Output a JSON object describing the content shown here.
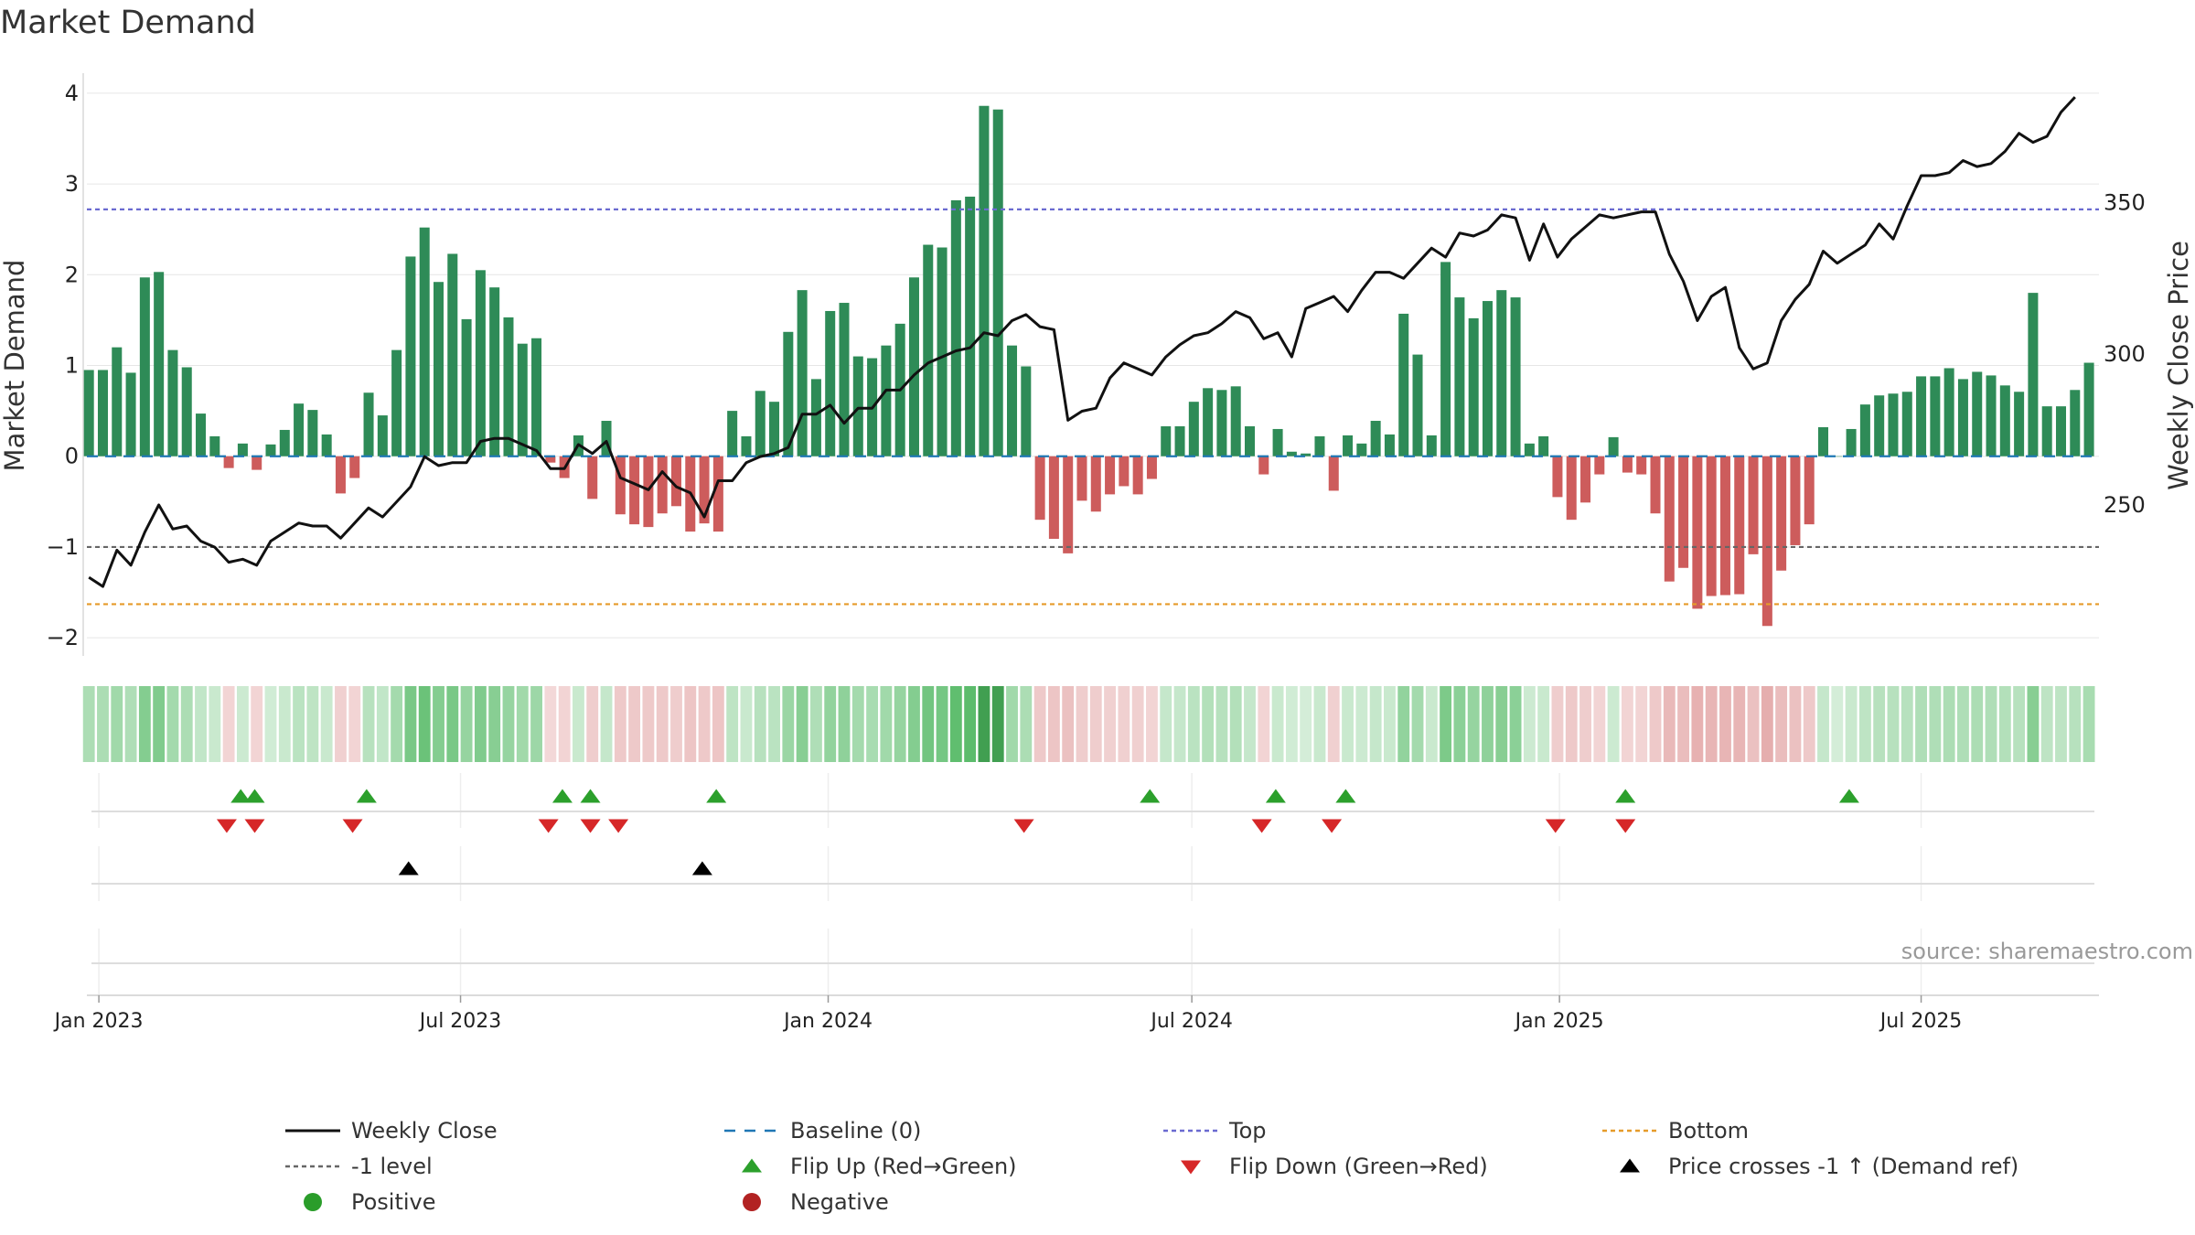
{
  "title": "Market Demand",
  "source": "source: sharemaestro.com",
  "colors": {
    "positive": "#2e8b57",
    "negative": "#cd5c5c",
    "price": "#111111",
    "baseline": "#1f77b4",
    "top": "#6a6ad0",
    "bottom": "#e69b2a",
    "minus1": "#666666",
    "flip_up": "#2ca02c",
    "flip_down": "#d62728",
    "cross": "#000000",
    "legend_positive": "#2a9d2a",
    "legend_negative": "#b22222"
  },
  "chart_data": {
    "type": "bar+line",
    "title": "Market Demand",
    "ylabel": "Market Demand",
    "y2label": "Weekly Close Price",
    "ylim": [
      -2.2,
      4.2
    ],
    "y2lim": [
      200,
      392.3
    ],
    "yticks": [
      -2,
      -1,
      0,
      1,
      2,
      3,
      4
    ],
    "y2ticks": [
      250,
      300,
      350
    ],
    "ytick_labels": [
      "−2",
      "−1",
      "0",
      "1",
      "2",
      "3",
      "4"
    ],
    "y2tick_labels": [
      "250",
      "300",
      "350"
    ],
    "top_level": 2.72,
    "bottom_level": -1.63,
    "minus1_level": -1,
    "x_start": "2022-12-26",
    "x_end": "2025-09-28",
    "xticks": [
      {
        "date": "2023-01-01",
        "label": "Jan 2023"
      },
      {
        "date": "2023-07-01",
        "label": "Jul 2023"
      },
      {
        "date": "2024-01-01",
        "label": "Jan 2024"
      },
      {
        "date": "2024-07-01",
        "label": "Jul 2024"
      },
      {
        "date": "2025-01-01",
        "label": "Jan 2025"
      },
      {
        "date": "2025-07-01",
        "label": "Jul 2025"
      }
    ],
    "start_date": "2022-12-27",
    "demand": [
      0.95,
      0.95,
      1.2,
      0.92,
      1.97,
      2.03,
      1.17,
      0.98,
      0.47,
      0.22,
      -0.13,
      0.14,
      -0.15,
      0.13,
      0.29,
      0.58,
      0.51,
      0.24,
      -0.41,
      -0.24,
      0.7,
      0.45,
      1.17,
      2.2,
      2.52,
      1.92,
      2.23,
      1.51,
      2.05,
      1.86,
      1.53,
      1.24,
      1.3,
      -0.07,
      -0.24,
      0.23,
      -0.47,
      0.39,
      -0.64,
      -0.75,
      -0.78,
      -0.63,
      -0.55,
      -0.83,
      -0.74,
      -0.83,
      0.5,
      0.22,
      0.72,
      0.6,
      1.37,
      1.83,
      0.85,
      1.6,
      1.69,
      1.1,
      1.08,
      1.22,
      1.46,
      1.97,
      2.33,
      2.3,
      2.82,
      2.86,
      3.86,
      3.82,
      1.22,
      0.99,
      -0.7,
      -0.91,
      -1.07,
      -0.49,
      -0.61,
      -0.42,
      -0.33,
      -0.42,
      -0.25,
      0.33,
      0.33,
      0.6,
      0.75,
      0.73,
      0.77,
      0.33,
      -0.2,
      0.3,
      0.05,
      0.03,
      0.22,
      -0.38,
      0.23,
      0.14,
      0.39,
      0.24,
      1.57,
      1.12,
      0.23,
      2.14,
      1.75,
      1.52,
      1.71,
      1.83,
      1.75,
      0.14,
      0.22,
      -0.45,
      -0.7,
      -0.51,
      -0.2,
      0.21,
      -0.18,
      -0.2,
      -0.63,
      -1.38,
      -1.23,
      -1.68,
      -1.54,
      -1.53,
      -1.52,
      -1.08,
      -1.87,
      -1.26,
      -0.98,
      -0.75,
      0.32,
      0.0,
      0.3,
      0.57,
      0.67,
      0.69,
      0.71,
      0.88,
      0.88,
      0.97,
      0.85,
      0.93,
      0.89,
      0.78,
      0.71,
      1.8,
      0.55,
      0.55,
      0.73,
      1.03
    ],
    "price": [
      226,
      223,
      235,
      230,
      241,
      250,
      242,
      243,
      238,
      236,
      231,
      232,
      230,
      238,
      241,
      244,
      243,
      243,
      239,
      244,
      249,
      246,
      251,
      256,
      266,
      263,
      264,
      264,
      271,
      272,
      272,
      270,
      268,
      262,
      262,
      270,
      267,
      271,
      259,
      257,
      255,
      261,
      256,
      254,
      246,
      258,
      258,
      264,
      266,
      267,
      269,
      280,
      280,
      283,
      277,
      282,
      282,
      288,
      288,
      293,
      297,
      299,
      301,
      302,
      307,
      306,
      311,
      313,
      309,
      308,
      278,
      281,
      282,
      292,
      297,
      295,
      293,
      299,
      303,
      306,
      307,
      310,
      314,
      312,
      305,
      307,
      299,
      315,
      317,
      319,
      314,
      321,
      327,
      327,
      325,
      330,
      335,
      332,
      340,
      339,
      341,
      346,
      345,
      331,
      343,
      332,
      338,
      342,
      346,
      345,
      346,
      347,
      347,
      333,
      324,
      311,
      319,
      322,
      302,
      295,
      297,
      311,
      318,
      323,
      334,
      330,
      333,
      336,
      343,
      338,
      349,
      359,
      359,
      360,
      364,
      362,
      363,
      367,
      373,
      370,
      372,
      380,
      385
    ]
  },
  "flip_up_labels": [
    {
      "date": "2023-03-13"
    },
    {
      "date": "2023-03-20"
    },
    {
      "date": "2023-05-15"
    },
    {
      "date": "2023-08-21"
    },
    {
      "date": "2023-09-04"
    },
    {
      "date": "2023-11-06"
    },
    {
      "date": "2024-06-10"
    },
    {
      "date": "2024-08-12"
    },
    {
      "date": "2024-09-16"
    },
    {
      "date": "2025-02-03"
    },
    {
      "date": "2025-05-26"
    }
  ],
  "flip_down_labels": [
    {
      "date": "2023-03-06"
    },
    {
      "date": "2023-03-20"
    },
    {
      "date": "2023-05-08"
    },
    {
      "date": "2023-08-14"
    },
    {
      "date": "2023-09-04"
    },
    {
      "date": "2023-09-18"
    },
    {
      "date": "2024-04-08"
    },
    {
      "date": "2024-08-05"
    },
    {
      "date": "2024-09-09"
    },
    {
      "date": "2024-12-30"
    },
    {
      "date": "2025-02-03"
    }
  ],
  "price_cross_labels": [
    {
      "date": "2023-06-05"
    },
    {
      "date": "2023-10-30"
    }
  ],
  "legend": [
    {
      "key": "weekly_close",
      "label": "Weekly Close",
      "symbol": "line",
      "color": "#111111"
    },
    {
      "key": "baseline",
      "label": "Baseline (0)",
      "symbol": "dash",
      "color": "#1f77b4"
    },
    {
      "key": "top",
      "label": "Top",
      "symbol": "dot",
      "color": "#6a6ad0"
    },
    {
      "key": "bottom",
      "label": "Bottom",
      "symbol": "dot",
      "color": "#e69b2a"
    },
    {
      "key": "minus1",
      "label": "-1 level",
      "symbol": "dot",
      "color": "#666666"
    },
    {
      "key": "flip_up",
      "label": "Flip Up (Red→Green)",
      "symbol": "tri-up",
      "color": "#2ca02c"
    },
    {
      "key": "flip_down",
      "label": "Flip Down (Green→Red)",
      "symbol": "tri-down",
      "color": "#d62728"
    },
    {
      "key": "cross",
      "label": "Price crosses -1 ↑ (Demand ref)",
      "symbol": "tri-up",
      "color": "#000000"
    },
    {
      "key": "positive",
      "label": "Positive",
      "symbol": "circle",
      "color": "#2a9d2a"
    },
    {
      "key": "negative",
      "label": "Negative",
      "symbol": "circle",
      "color": "#b22222"
    }
  ]
}
